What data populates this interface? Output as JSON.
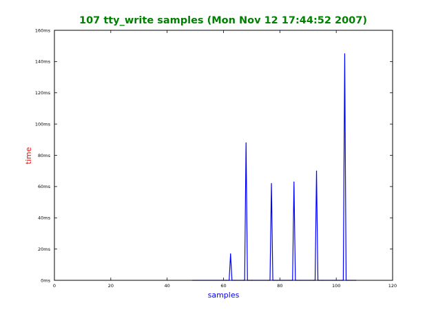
{
  "chart_data": {
    "type": "line",
    "title": "107 tty_write samples (Mon Nov 12 17:44:52 2007)",
    "xlabel": "samples",
    "ylabel": "time",
    "xlim": [
      0,
      120
    ],
    "ylim": [
      0,
      160
    ],
    "xticks": [
      0,
      20,
      40,
      60,
      80,
      100,
      120
    ],
    "xtick_labels": [
      "0",
      "20",
      "40",
      "60",
      "80",
      "100",
      "120"
    ],
    "yticks": [
      0,
      20,
      40,
      60,
      80,
      100,
      120,
      140,
      160
    ],
    "ytick_labels": [
      "0ms",
      "20ms",
      "40ms",
      "60ms",
      "80ms",
      "100ms",
      "120ms",
      "140ms",
      "160ms"
    ],
    "grid": false,
    "colors": {
      "title": "#008000",
      "xlabel": "#0000ff",
      "ylabel": "#ff0000",
      "line": "#0000ff",
      "axes": "#000000"
    },
    "series": [
      {
        "x": [
          49,
          61,
          62,
          62.5,
          63,
          64,
          67,
          67.5,
          68,
          68.5,
          69,
          70,
          76,
          76.5,
          77,
          77.5,
          78,
          79,
          84,
          84.5,
          85,
          85.5,
          86,
          87,
          92,
          92.5,
          93,
          93.5,
          94,
          95,
          102,
          102.5,
          103,
          103.5,
          104,
          107
        ],
        "y": [
          0,
          0,
          0,
          17,
          0,
          0,
          0,
          0,
          88,
          0,
          0,
          0,
          0,
          0,
          62,
          0,
          0,
          0,
          0,
          0,
          63,
          0,
          0,
          0,
          0,
          0,
          70,
          0,
          0,
          0,
          0,
          0,
          145,
          0,
          0,
          0
        ]
      }
    ]
  }
}
